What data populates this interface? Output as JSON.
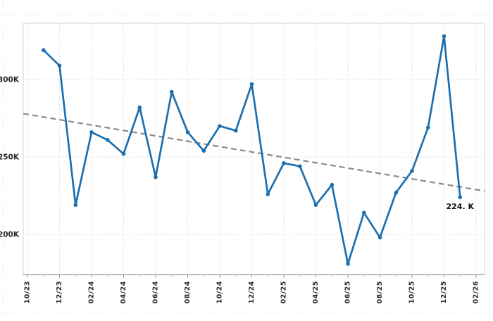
{
  "chart_data": {
    "type": "line",
    "title": "",
    "legend": "none",
    "grid": "dotted",
    "x": [
      "11/23",
      "12/23",
      "01/24",
      "02/24",
      "03/24",
      "04/24",
      "05/24",
      "06/24",
      "07/24",
      "08/24",
      "09/24",
      "10/24",
      "11/24",
      "12/24",
      "01/25",
      "02/25",
      "03/25",
      "04/25",
      "05/25",
      "06/25",
      "07/25",
      "08/25",
      "09/25",
      "10/25",
      "11/25",
      "12/25",
      "01/26"
    ],
    "series": [
      {
        "name": "monthly-values",
        "color": "#1b6fb0",
        "marker": "circle",
        "values_k": [
          319,
          309,
          219,
          266,
          261,
          252,
          282,
          237,
          292,
          266,
          254,
          270,
          267,
          297,
          226,
          246,
          244,
          219,
          232,
          181,
          214,
          198,
          227,
          241,
          269,
          328,
          224
        ]
      }
    ],
    "trendline": {
      "name": "linear-trend",
      "color": "#8a8a8a",
      "style": "dashed",
      "start_k": 278,
      "end_k": 228,
      "span": [
        "10/23",
        "02/26"
      ]
    },
    "annotation": {
      "text": "224. K",
      "x": "01/26",
      "value_k": 224
    },
    "x_axis": {
      "tick_labels": [
        "10/23",
        "12/23",
        "02/24",
        "04/24",
        "06/24",
        "08/24",
        "10/24",
        "12/24",
        "02/25",
        "04/25",
        "06/25",
        "08/25",
        "10/25",
        "12/25",
        "02/26"
      ],
      "minor_ticks": "monthly",
      "label_rotation_deg": -90
    },
    "y_axis": {
      "tick_labels": [
        "300K",
        "250K",
        "200K"
      ],
      "tick_values_k": [
        300,
        250,
        200
      ],
      "ylim_k": [
        174,
        336
      ]
    },
    "colors": {
      "line": "#1b6fb0",
      "trend": "#8a8a8a",
      "gridline": "#c9c9c9",
      "plot_border": "#e2e2e2",
      "axis_line": "#ababab",
      "tick": "#9e9e9e",
      "tick_label_text": "#2b2b2b",
      "annotation_text": "#111111",
      "background": "#ffffff"
    }
  }
}
